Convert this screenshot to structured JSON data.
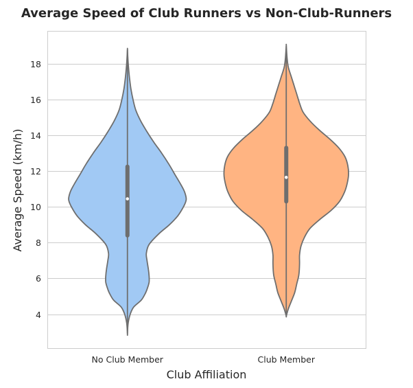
{
  "chart_data": {
    "type": "violin",
    "title": "Average Speed of Club Runners vs Non-Club-Runners",
    "xlabel": "Club Affiliation",
    "ylabel": "Average Speed (km/h)",
    "categories": [
      "No Club Member",
      "Club Member"
    ],
    "ylim": [
      2.1,
      19.8
    ],
    "yticks": [
      4,
      6,
      8,
      10,
      12,
      14,
      16,
      18
    ],
    "grid": true,
    "colors": [
      "#a1c9f4",
      "#ffb482"
    ],
    "series": [
      {
        "min": 2.9,
        "q1": 8.4,
        "median": 10.45,
        "q3": 12.25,
        "max": 18.8,
        "density": [
          [
            2.9,
            0.0
          ],
          [
            3.5,
            0.01
          ],
          [
            4.0,
            0.04
          ],
          [
            4.4,
            0.09
          ],
          [
            4.8,
            0.2
          ],
          [
            5.2,
            0.26
          ],
          [
            5.5,
            0.29
          ],
          [
            5.8,
            0.31
          ],
          [
            6.1,
            0.31
          ],
          [
            6.5,
            0.3
          ],
          [
            7.0,
            0.28
          ],
          [
            7.4,
            0.27
          ],
          [
            7.9,
            0.31
          ],
          [
            8.5,
            0.45
          ],
          [
            9.0,
            0.6
          ],
          [
            9.5,
            0.72
          ],
          [
            10.0,
            0.8
          ],
          [
            10.4,
            0.84
          ],
          [
            10.8,
            0.82
          ],
          [
            11.2,
            0.77
          ],
          [
            11.8,
            0.68
          ],
          [
            12.4,
            0.59
          ],
          [
            13.0,
            0.49
          ],
          [
            13.6,
            0.38
          ],
          [
            14.2,
            0.28
          ],
          [
            14.8,
            0.19
          ],
          [
            15.4,
            0.12
          ],
          [
            16.0,
            0.08
          ],
          [
            16.6,
            0.05
          ],
          [
            17.2,
            0.03
          ],
          [
            17.8,
            0.015
          ],
          [
            18.3,
            0.006
          ],
          [
            18.8,
            0.0
          ]
        ]
      },
      {
        "min": 3.9,
        "q1": 10.3,
        "median": 11.65,
        "q3": 13.3,
        "max": 19.0,
        "density": [
          [
            3.9,
            0.0
          ],
          [
            4.3,
            0.03
          ],
          [
            4.7,
            0.07
          ],
          [
            5.2,
            0.12
          ],
          [
            5.7,
            0.15
          ],
          [
            6.2,
            0.18
          ],
          [
            6.8,
            0.19
          ],
          [
            7.3,
            0.19
          ],
          [
            7.8,
            0.21
          ],
          [
            8.3,
            0.26
          ],
          [
            8.8,
            0.34
          ],
          [
            9.3,
            0.48
          ],
          [
            9.8,
            0.64
          ],
          [
            10.3,
            0.76
          ],
          [
            10.8,
            0.83
          ],
          [
            11.3,
            0.87
          ],
          [
            11.8,
            0.89
          ],
          [
            12.3,
            0.88
          ],
          [
            12.8,
            0.84
          ],
          [
            13.3,
            0.75
          ],
          [
            13.8,
            0.62
          ],
          [
            14.3,
            0.47
          ],
          [
            14.8,
            0.34
          ],
          [
            15.3,
            0.24
          ],
          [
            15.8,
            0.19
          ],
          [
            16.3,
            0.15
          ],
          [
            16.8,
            0.11
          ],
          [
            17.3,
            0.07
          ],
          [
            17.8,
            0.03
          ],
          [
            18.3,
            0.012
          ],
          [
            19.0,
            0.0
          ]
        ]
      }
    ]
  }
}
